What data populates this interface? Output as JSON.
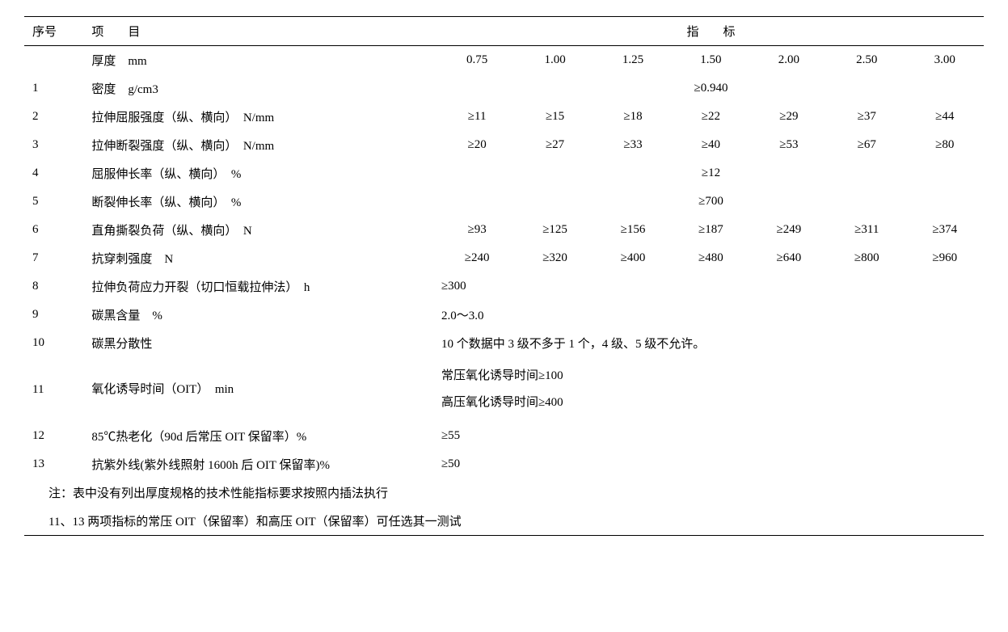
{
  "header": {
    "seq": "序号",
    "item": "项　　目",
    "metric": "指　　标"
  },
  "thickness": {
    "label": "厚度　mm",
    "values": [
      "0.75",
      "1.00",
      "1.25",
      "1.50",
      "2.00",
      "2.50",
      "3.00"
    ]
  },
  "rows": [
    {
      "seq": "1",
      "item": "密度　g/cm3",
      "type": "span_center",
      "value": "≥0.940"
    },
    {
      "seq": "2",
      "item": "拉伸屈服强度（纵、横向）　N/mm",
      "type": "vals",
      "values": [
        "≥11",
        "≥15",
        "≥18",
        "≥22",
        "≥29",
        "≥37",
        "≥44"
      ]
    },
    {
      "seq": "3",
      "item": "拉伸断裂强度（纵、横向）　N/mm",
      "type": "vals",
      "values": [
        "≥20",
        "≥27",
        "≥33",
        "≥40",
        "≥53",
        "≥67",
        "≥80"
      ]
    },
    {
      "seq": "4",
      "item": "屈服伸长率（纵、横向）　%",
      "type": "span_center",
      "value": "≥12"
    },
    {
      "seq": "5",
      "item": "断裂伸长率（纵、横向）　%",
      "type": "span_center",
      "value": "≥700"
    },
    {
      "seq": "6",
      "item": "直角撕裂负荷（纵、横向）　N",
      "type": "vals",
      "values": [
        "≥93",
        "≥125",
        "≥156",
        "≥187",
        "≥249",
        "≥311",
        "≥374"
      ]
    },
    {
      "seq": "7",
      "item": "抗穿刺强度　N",
      "type": "vals",
      "values": [
        "≥240",
        "≥320",
        "≥400",
        "≥480",
        "≥640",
        "≥800",
        "≥960"
      ]
    },
    {
      "seq": "8",
      "item": "拉伸负荷应力开裂（切口恒载拉伸法）　h",
      "type": "span_left",
      "value": "≥300"
    },
    {
      "seq": "9",
      "item": "碳黑含量　%",
      "type": "span_left",
      "value": "2.0～3.0"
    },
    {
      "seq": "10",
      "item": "碳黑分散性",
      "type": "span_left",
      "value": "10 个数据中 3 级不多于 1 个，4 级、5 级不允许。"
    },
    {
      "seq": "11",
      "item": "氧化诱导时间（OIT）　min",
      "type": "span_left_2",
      "value1": "常压氧化诱导时间≥100",
      "value2": "高压氧化诱导时间≥400"
    },
    {
      "seq": "12",
      "item": "85℃热老化（90d 后常压 OIT 保留率）%",
      "type": "span_left",
      "value": "≥55"
    },
    {
      "seq": "13",
      "item": "抗紫外线(紫外线照射 1600h 后 OIT 保留率)%",
      "type": "span_left",
      "value": "≥50"
    }
  ],
  "notes": [
    "注：表中没有列出厚度规格的技术性能指标要求按照内插法执行",
    "11、13 两项指标的常压 OIT（保留率）和高压 OIT（保留率）可任选其一测试"
  ],
  "style": {
    "background_color": "#ffffff",
    "text_color": "#000000",
    "border_color": "#000000",
    "font_family": "SimSun",
    "font_size_pt": 11
  }
}
